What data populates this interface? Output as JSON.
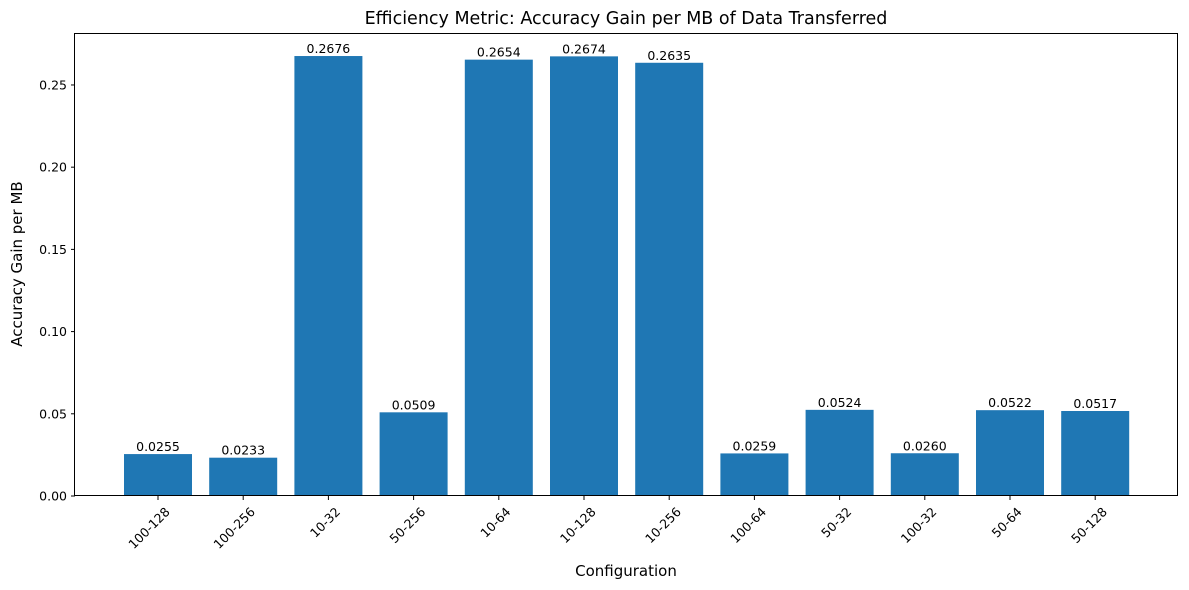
{
  "chart_data": {
    "type": "bar",
    "title": "Efficiency Metric: Accuracy Gain per MB of Data Transferred",
    "xlabel": "Configuration",
    "ylabel": "Accuracy Gain per MB",
    "categories": [
      "100-128",
      "100-256",
      "10-32",
      "50-256",
      "10-64",
      "10-128",
      "10-256",
      "100-64",
      "50-32",
      "100-32",
      "50-64",
      "50-128"
    ],
    "values": [
      0.0255,
      0.0233,
      0.2676,
      0.0509,
      0.2654,
      0.2674,
      0.2635,
      0.0259,
      0.0524,
      0.026,
      0.0522,
      0.0517
    ],
    "value_labels": [
      "0.0255",
      "0.0233",
      "0.2676",
      "0.0509",
      "0.2654",
      "0.2674",
      "0.2635",
      "0.0259",
      "0.0524",
      "0.0260",
      "0.0522",
      "0.0517"
    ],
    "yticks": [
      0.0,
      0.05,
      0.1,
      0.15,
      0.2,
      0.25
    ],
    "ytick_labels": [
      "0.00",
      "0.05",
      "0.10",
      "0.15",
      "0.20",
      "0.25"
    ],
    "ylim": [
      0,
      0.281
    ],
    "grid": false,
    "color": "#1f77b4"
  }
}
